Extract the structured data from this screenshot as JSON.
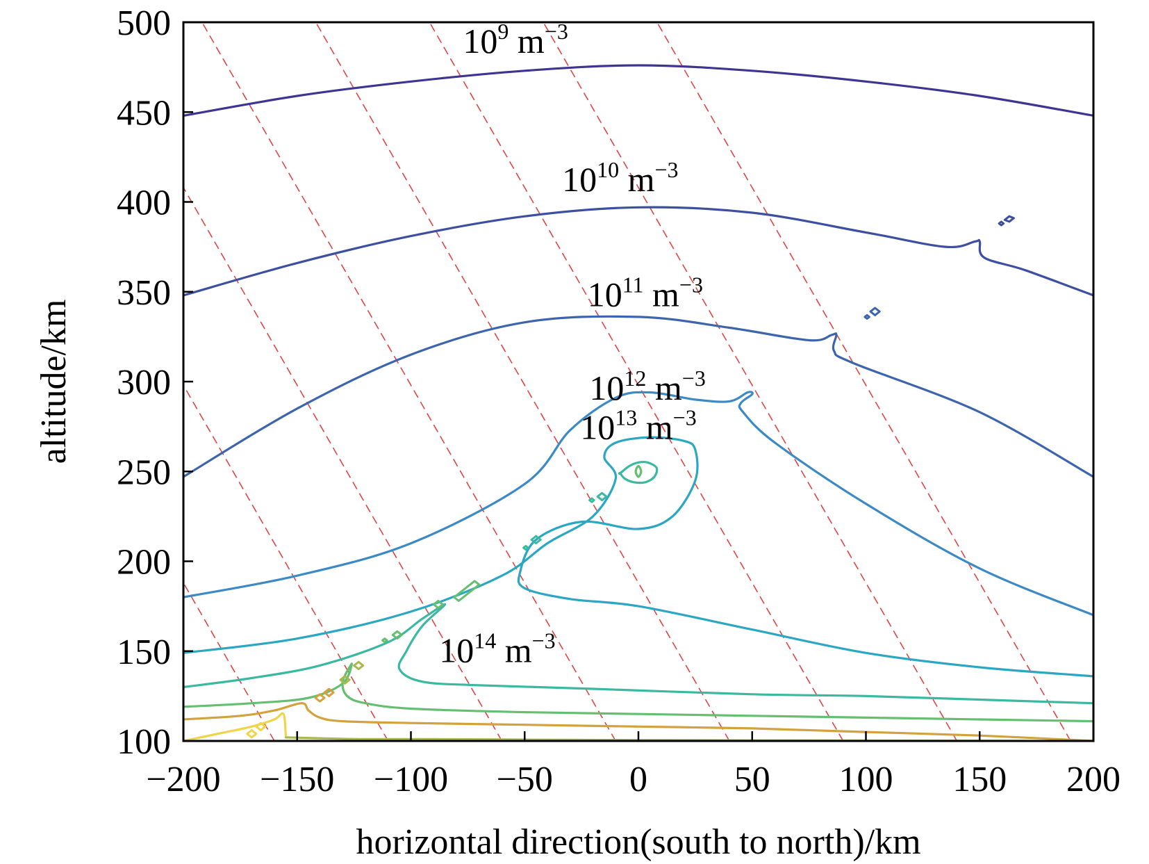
{
  "chart_data": {
    "type": "contour",
    "xlabel": "horizontal direction(south to north)/km",
    "ylabel": "altitude/km",
    "xlim": [
      -200,
      200
    ],
    "ylim": [
      100,
      500
    ],
    "xticks": [
      -200,
      -150,
      -100,
      -50,
      0,
      50,
      100,
      150,
      200
    ],
    "yticks": [
      100,
      150,
      200,
      250,
      300,
      350,
      400,
      450,
      500
    ],
    "xtick_labels": [
      "−200",
      "−150",
      "−100",
      "−50",
      "0",
      "50",
      "100",
      "150",
      "200"
    ],
    "ytick_labels": [
      "100",
      "150",
      "200",
      "250",
      "300",
      "350",
      "400",
      "450",
      "500"
    ],
    "grid": false,
    "colors": {
      "level_1e9": "#3d3591",
      "level_1e10": "#3c4fa0",
      "level_1e11": "#3c65ad",
      "level_1e12": "#3b8ac6",
      "level_1e13": "#2aa7c2",
      "level_1e14": "#3ab8a0",
      "level_green": "#66bf70",
      "level_olive": "#a9b84a",
      "level_orange": "#d3a23c",
      "level_yellow": "#f0d44a",
      "field_lines": "#e04545"
    },
    "contour_labels": [
      {
        "base": "10",
        "exp": "9",
        "unit": " m",
        "unit_exp": "−3",
        "x": -54,
        "y": 483
      },
      {
        "base": "10",
        "exp": "10",
        "unit": " m",
        "unit_exp": "−3",
        "x": -8,
        "y": 406
      },
      {
        "base": "10",
        "exp": "11",
        "unit": " m",
        "unit_exp": "−3",
        "x": 3,
        "y": 342
      },
      {
        "base": "10",
        "exp": "12",
        "unit": " m",
        "unit_exp": "−3",
        "x": 4,
        "y": 290
      },
      {
        "base": "10",
        "exp": "13",
        "unit": " m",
        "unit_exp": "−3",
        "x": 0,
        "y": 268
      },
      {
        "base": "10",
        "exp": "14",
        "unit": " m",
        "unit_exp": "−3",
        "x": -62,
        "y": 144
      }
    ],
    "series": [
      {
        "level": "1e9",
        "color_key": "level_1e9",
        "closed": false,
        "x": [
          -200,
          -150,
          -100,
          -50,
          0,
          50,
          100,
          150,
          200
        ],
        "y": [
          448,
          459,
          467,
          473,
          476,
          473,
          467,
          459,
          448
        ]
      },
      {
        "level": "1e10",
        "color_key": "level_1e10",
        "closed": false,
        "x": [
          -200,
          -150,
          -100,
          -50,
          0,
          50,
          100,
          135,
          148,
          150,
          152,
          170,
          200
        ],
        "y": [
          348,
          366,
          381,
          392,
          397,
          394,
          383,
          375,
          378,
          378,
          369,
          362,
          348
        ]
      },
      {
        "level": "1e11",
        "color_key": "level_1e11",
        "closed": false,
        "x": [
          -200,
          -150,
          -100,
          -50,
          0,
          40,
          75,
          85,
          87,
          86,
          95,
          150,
          200
        ],
        "y": [
          247,
          285,
          315,
          333,
          336,
          330,
          323,
          326,
          326,
          317,
          310,
          283,
          247
        ]
      },
      {
        "level": "1e12",
        "color_key": "level_1e12",
        "closed": false,
        "x": [
          -200,
          -150,
          -100,
          -50,
          -30,
          -10,
          5,
          25,
          40,
          48,
          50,
          45,
          46,
          60,
          100,
          150,
          200
        ],
        "y": [
          180,
          192,
          210,
          243,
          273,
          291,
          294,
          290,
          289,
          294,
          293,
          288,
          283,
          266,
          232,
          196,
          170
        ]
      },
      {
        "level": "1e13",
        "color_key": "level_1e13",
        "closed": false,
        "x": [
          -200,
          -150,
          -100,
          -60,
          -40,
          -20,
          -10,
          -15,
          -10,
          5,
          20,
          25,
          25,
          15,
          0,
          -25,
          -45,
          -52,
          -50,
          -30,
          0,
          50,
          100,
          150,
          200
        ],
        "y": [
          149,
          157,
          172,
          192,
          210,
          225,
          246,
          258,
          266,
          269,
          267,
          262,
          245,
          225,
          218,
          222,
          212,
          194,
          185,
          179,
          175,
          162,
          149,
          141,
          136
        ]
      },
      {
        "level": "1e14",
        "color_key": "level_1e14",
        "closed": false,
        "x": [
          -200,
          -170,
          -140,
          -110,
          -95,
          -85,
          -95,
          -102,
          -105,
          -95,
          -70,
          -20,
          50,
          100,
          150,
          200
        ],
        "y": [
          130,
          135,
          142,
          155,
          168,
          176,
          164,
          150,
          140,
          133,
          131,
          129,
          126,
          125,
          123,
          121
        ]
      },
      {
        "level": "green",
        "color_key": "level_green",
        "closed": false,
        "x": [
          -200,
          -170,
          -145,
          -130,
          -126,
          -130,
          -128,
          -120,
          -100,
          -50,
          0,
          50,
          100,
          150,
          200
        ],
        "y": [
          119,
          121,
          124,
          132,
          143,
          133,
          125,
          121,
          118,
          116,
          115,
          114,
          113,
          112,
          111
        ]
      },
      {
        "level": "orange",
        "color_key": "level_orange",
        "closed": false,
        "x": [
          -200,
          -175,
          -160,
          -148,
          -145,
          -140,
          -130,
          -100,
          -50,
          0,
          50,
          100,
          150,
          200
        ],
        "y": [
          112,
          114,
          117,
          121,
          117,
          113,
          111,
          110,
          109,
          108,
          107,
          105,
          103,
          100
        ]
      },
      {
        "level": "olive",
        "color_key": "level_olive",
        "closed": false,
        "x": [
          -155,
          -140,
          -120,
          -90,
          -60,
          -30,
          0,
          30,
          60,
          100,
          150,
          170
        ],
        "y": [
          102,
          101.5,
          101,
          101,
          100.8,
          100.6,
          100.5,
          100.4,
          100.3,
          100.2,
          100.1,
          100
        ]
      },
      {
        "level": "yellow",
        "color_key": "level_yellow",
        "closed": false,
        "x": [
          -200,
          -185,
          -170,
          -160,
          -156,
          -155
        ],
        "y": [
          100,
          104,
          108,
          112,
          115,
          103
        ]
      },
      {
        "level": "core-1e14",
        "color_key": "level_1e14",
        "closed": true,
        "x": [
          -8,
          -4,
          0,
          4,
          8,
          7,
          3,
          -2,
          -6,
          -8
        ],
        "y": [
          249,
          253,
          255,
          255,
          252,
          247,
          244,
          244,
          246,
          249
        ]
      },
      {
        "level": "core-green",
        "color_key": "level_green",
        "closed": true,
        "x": [
          -1.2,
          0,
          1.2,
          0
        ],
        "y": [
          250,
          253,
          250,
          247
        ]
      }
    ],
    "islands": [
      {
        "color_key": "level_1e10",
        "x": [
          161,
          163,
          165,
          163
        ],
        "y": [
          390,
          392,
          391,
          389
        ]
      },
      {
        "color_key": "level_1e10",
        "x": [
          158.5,
          159.5,
          160.5,
          159.5
        ],
        "y": [
          388,
          389,
          388,
          387
        ]
      },
      {
        "color_key": "level_1e11",
        "x": [
          102,
          104,
          106,
          104
        ],
        "y": [
          339,
          341,
          339,
          337
        ]
      },
      {
        "color_key": "level_1e11",
        "x": [
          99.5,
          100.5,
          101.5,
          100.5
        ],
        "y": [
          336,
          337,
          336,
          335
        ]
      },
      {
        "color_key": "level_1e14",
        "x": [
          -18,
          -16,
          -14,
          -16
        ],
        "y": [
          236,
          238,
          236,
          234
        ]
      },
      {
        "color_key": "level_1e14",
        "x": [
          -21.5,
          -20.5,
          -19.5,
          -20.5
        ],
        "y": [
          234,
          235,
          234,
          233
        ]
      },
      {
        "color_key": "level_1e14",
        "x": [
          -47,
          -45,
          -43,
          -45
        ],
        "y": [
          212,
          214,
          212,
          210
        ]
      },
      {
        "color_key": "level_1e14",
        "x": [
          -50.5,
          -49.5,
          -48.5,
          -49.5
        ],
        "y": [
          207.5,
          208.5,
          207.5,
          206.5
        ]
      },
      {
        "color_key": "level_green",
        "x": [
          -81,
          -72,
          -70,
          -79,
          -81
        ],
        "y": [
          180,
          189,
          187,
          178,
          180
        ]
      },
      {
        "color_key": "level_green",
        "x": [
          -90,
          -88,
          -86,
          -88
        ],
        "y": [
          176,
          178,
          176,
          174
        ]
      },
      {
        "color_key": "level_green",
        "x": [
          -108,
          -106,
          -104,
          -106
        ],
        "y": [
          159,
          161,
          159,
          157
        ]
      },
      {
        "color_key": "level_green",
        "x": [
          -112.5,
          -111.5,
          -110.5,
          -111.5
        ],
        "y": [
          156,
          157,
          156,
          155
        ]
      },
      {
        "color_key": "level_olive",
        "x": [
          -125,
          -123,
          -121,
          -123
        ],
        "y": [
          142,
          144,
          142,
          140
        ]
      },
      {
        "color_key": "level_olive",
        "x": [
          -131,
          -129,
          -127,
          -129
        ],
        "y": [
          134,
          136,
          134,
          132
        ]
      },
      {
        "color_key": "level_orange",
        "x": [
          -138,
          -136,
          -134,
          -136
        ],
        "y": [
          127,
          129,
          127,
          125
        ]
      },
      {
        "color_key": "level_orange",
        "x": [
          -142,
          -140,
          -138,
          -140
        ],
        "y": [
          124,
          126,
          124,
          122
        ]
      },
      {
        "color_key": "level_yellow",
        "x": [
          -168,
          -166,
          -164,
          -166
        ],
        "y": [
          108,
          110,
          108,
          106
        ]
      },
      {
        "color_key": "level_yellow",
        "x": [
          -172,
          -170,
          -168,
          -170
        ],
        "y": [
          104,
          106,
          104,
          102
        ]
      }
    ],
    "field_lines": {
      "slope": -2.2,
      "x_at_100": [
        -210,
        -160,
        -110,
        -60,
        -10,
        40,
        90,
        140,
        190
      ]
    }
  }
}
